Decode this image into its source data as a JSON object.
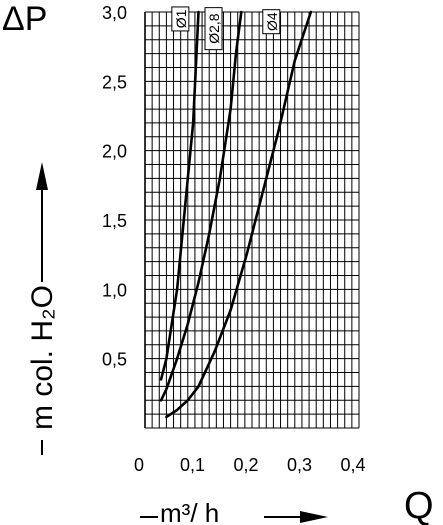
{
  "chart_data": {
    "type": "line",
    "title": "",
    "x_symbol": "Q",
    "y_symbol": "ΔP",
    "xlabel": "m³/ h",
    "ylabel": "m col. H₂O",
    "xlim": [
      0,
      0.4
    ],
    "ylim": [
      0,
      3.0
    ],
    "x_ticks": [
      "0",
      "0,1",
      "0,2",
      "0,3",
      "0,4"
    ],
    "y_ticks": [
      "0,5",
      "1,0",
      "1,5",
      "2,0",
      "2,5",
      "3,0"
    ],
    "grid": true,
    "series": [
      {
        "name": "Ø1",
        "x": [
          0.03,
          0.04,
          0.05,
          0.06,
          0.07,
          0.08,
          0.09,
          0.095,
          0.1
        ],
        "y": [
          0.35,
          0.5,
          0.75,
          1.0,
          1.4,
          1.8,
          2.2,
          2.6,
          3.0
        ]
      },
      {
        "name": "Ø2,8",
        "x": [
          0.03,
          0.04,
          0.06,
          0.08,
          0.1,
          0.12,
          0.14,
          0.16,
          0.17,
          0.18
        ],
        "y": [
          0.2,
          0.28,
          0.5,
          0.75,
          1.05,
          1.4,
          1.8,
          2.3,
          2.7,
          3.0
        ]
      },
      {
        "name": "Ø4",
        "x": [
          0.04,
          0.06,
          0.08,
          0.1,
          0.13,
          0.16,
          0.19,
          0.22,
          0.25,
          0.28,
          0.31
        ],
        "y": [
          0.08,
          0.13,
          0.2,
          0.3,
          0.55,
          0.85,
          1.25,
          1.7,
          2.15,
          2.65,
          3.0
        ]
      }
    ]
  }
}
